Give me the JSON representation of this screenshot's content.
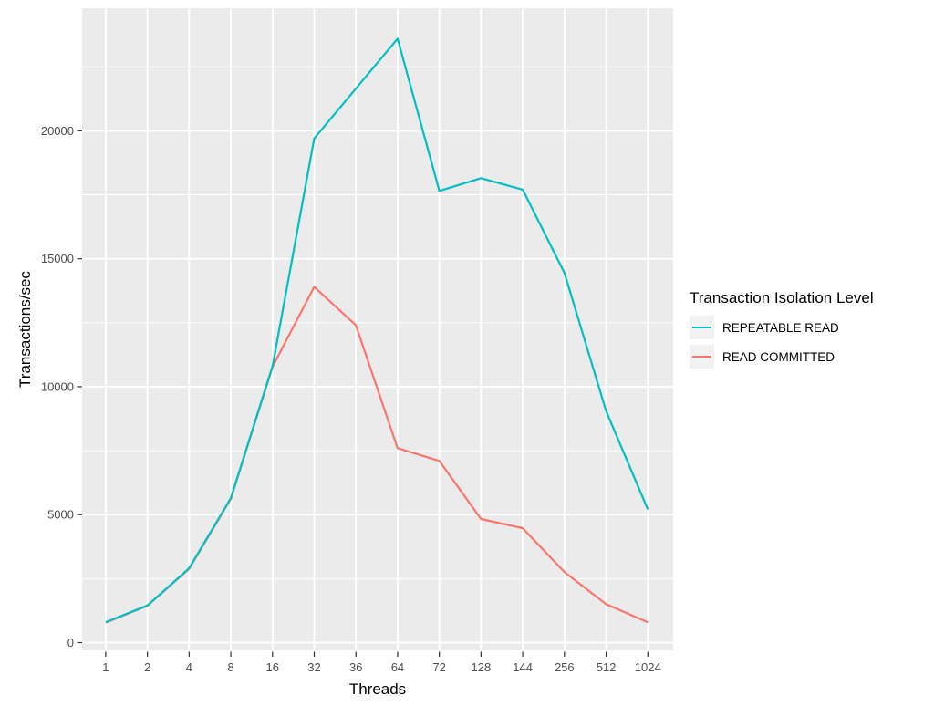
{
  "chart_data": {
    "type": "line",
    "title": "",
    "xlabel": "Threads",
    "ylabel": "Transactions/sec",
    "x_categories": [
      "1",
      "2",
      "4",
      "8",
      "16",
      "32",
      "36",
      "64",
      "72",
      "128",
      "144",
      "256",
      "512",
      "1024"
    ],
    "y_ticks": [
      0,
      5000,
      10000,
      15000,
      20000
    ],
    "y_tick_labels": [
      "0",
      "5000",
      "10000",
      "15000",
      "20000"
    ],
    "y_minor_ticks": [
      2500,
      7500,
      12500,
      17500,
      22500
    ],
    "ylim": [
      0,
      24800
    ],
    "grid": true,
    "legend": {
      "title": "Transaction Isolation Level",
      "position": "right"
    },
    "series": [
      {
        "name": "REPEATABLE READ",
        "color": "#00BFC4",
        "values": [
          800,
          1450,
          2900,
          5650,
          10800,
          19700,
          21650,
          23600,
          17650,
          18150,
          17700,
          14450,
          9050,
          5200
        ]
      },
      {
        "name": "READ COMMITTED",
        "color": "#F8766D",
        "values": [
          780,
          1440,
          2880,
          5620,
          10780,
          13900,
          12400,
          7600,
          7100,
          4830,
          4470,
          2760,
          1500,
          790
        ]
      }
    ]
  },
  "colors": {
    "page_bg": "#FFFFFF",
    "panel_bg": "#EBEBEB",
    "gridline": "#FFFFFF",
    "tick_mark": "#333333",
    "tick_label": "#4D4D4D",
    "axis_title": "#000000",
    "legend_key_bg": "#F2F2F2"
  }
}
